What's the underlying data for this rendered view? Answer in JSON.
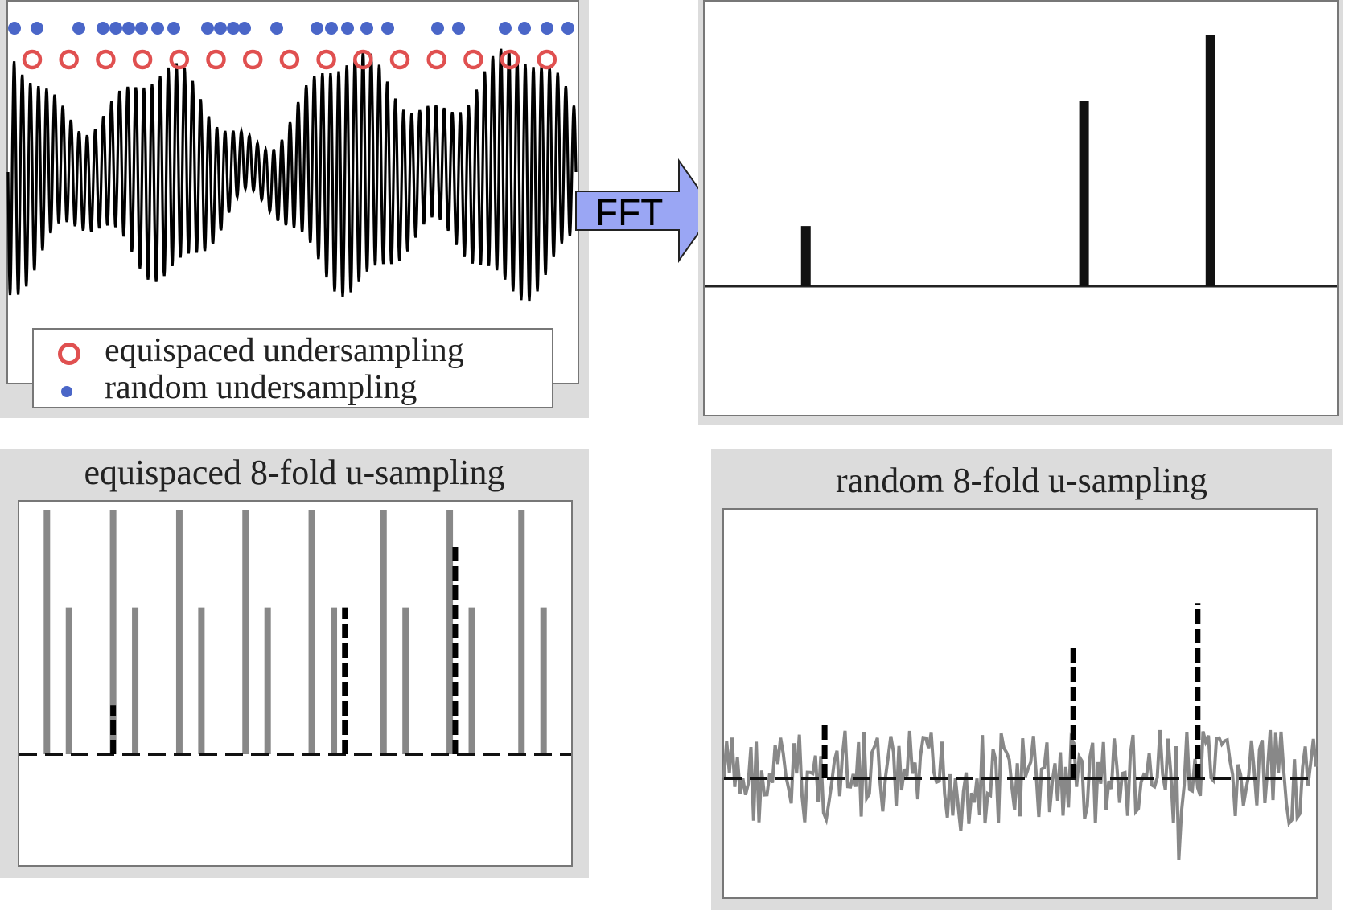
{
  "signal_panel": {
    "legend": {
      "equispaced": "equispaced undersampling",
      "random": "random undersampling"
    },
    "colors": {
      "equispaced_marker": "#e05050",
      "random_marker": "#4a66c8",
      "signal": "#000000"
    }
  },
  "arrow": {
    "label": "FFT",
    "color": "#9aa6f4"
  },
  "spectrum_panel": {
    "chart_data": {
      "type": "bar",
      "x": [
        0.16,
        0.6,
        0.8
      ],
      "values": [
        0.24,
        0.74,
        1.0
      ]
    }
  },
  "equi_panel": {
    "title": "equispaced 8-fold u-sampling",
    "chart_data": {
      "type": "bar",
      "series": [
        {
          "name": "",
          "color": "#888888",
          "x": [
            0.05,
            0.09,
            0.17,
            0.21,
            0.29,
            0.33,
            0.41,
            0.45,
            0.53,
            0.57,
            0.66,
            0.7,
            0.78,
            0.82,
            0.91,
            0.95
          ],
          "values": [
            1.0,
            0.6,
            1.0,
            0.6,
            1.0,
            0.6,
            1.0,
            0.6,
            1.0,
            0.6,
            1.0,
            0.6,
            1.0,
            0.6,
            1.0,
            0.6
          ]
        },
        {
          "name": "",
          "color": "#000000",
          "style": "dashed",
          "x": [
            0.17,
            0.59,
            0.79
          ],
          "values": [
            0.2,
            0.6,
            0.85
          ]
        }
      ]
    }
  },
  "random_panel": {
    "title": "random 8-fold u-sampling",
    "chart_data": {
      "type": "line",
      "series": [
        {
          "name": "",
          "color": "#888888",
          "style": "noise"
        },
        {
          "name": "",
          "color": "#000000",
          "style": "dashed",
          "x": [
            0.17,
            0.59,
            0.8
          ],
          "values": [
            0.2,
            0.5,
            0.66
          ]
        }
      ]
    }
  }
}
